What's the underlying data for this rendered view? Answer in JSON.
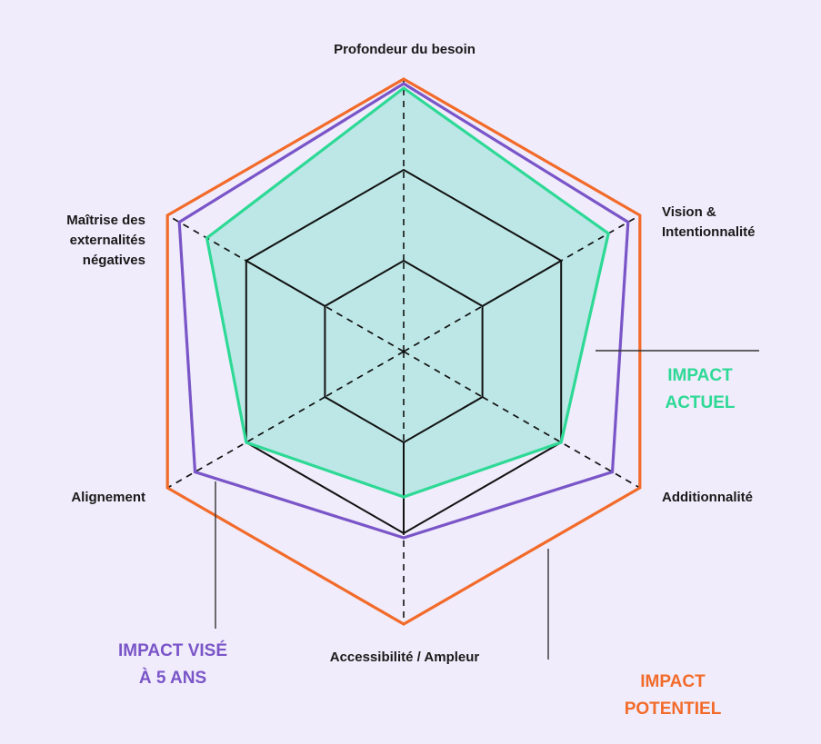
{
  "axes": [
    {
      "label": "Profondeur du besoin"
    },
    {
      "label": "Vision &\nIntentionnalité"
    },
    {
      "label": "Additionnalité"
    },
    {
      "label": "Accessibilité / Ampleur"
    },
    {
      "label": "Alignement"
    },
    {
      "label": "Maîtrise des\nexternalités\nnégatives"
    }
  ],
  "legend": {
    "actuel": {
      "label": "IMPACT\nACTUEL",
      "color": "#2ed996"
    },
    "vise": {
      "label": "IMPACT VISÉ\nÀ 5 ANS",
      "color": "#7a55c8"
    },
    "potentiel": {
      "label": "IMPACT\nPOTENTIEL",
      "color": "#f26b2a"
    }
  },
  "chart_data": {
    "type": "radar",
    "scale": {
      "levels": 3,
      "max": 3
    },
    "series": [
      {
        "key": "potentiel",
        "values": [
          3,
          3,
          3,
          3,
          3,
          3
        ],
        "color": "#f26b2a"
      },
      {
        "key": "vise",
        "values": [
          2.95,
          2.85,
          2.65,
          2.05,
          2.65,
          2.85
        ],
        "color": "#7a55c8"
      },
      {
        "key": "actuel",
        "values": [
          2.9,
          2.6,
          2.0,
          1.6,
          2.0,
          2.5
        ],
        "color": "#2ed996",
        "fill": "#bde7e6"
      }
    ]
  }
}
